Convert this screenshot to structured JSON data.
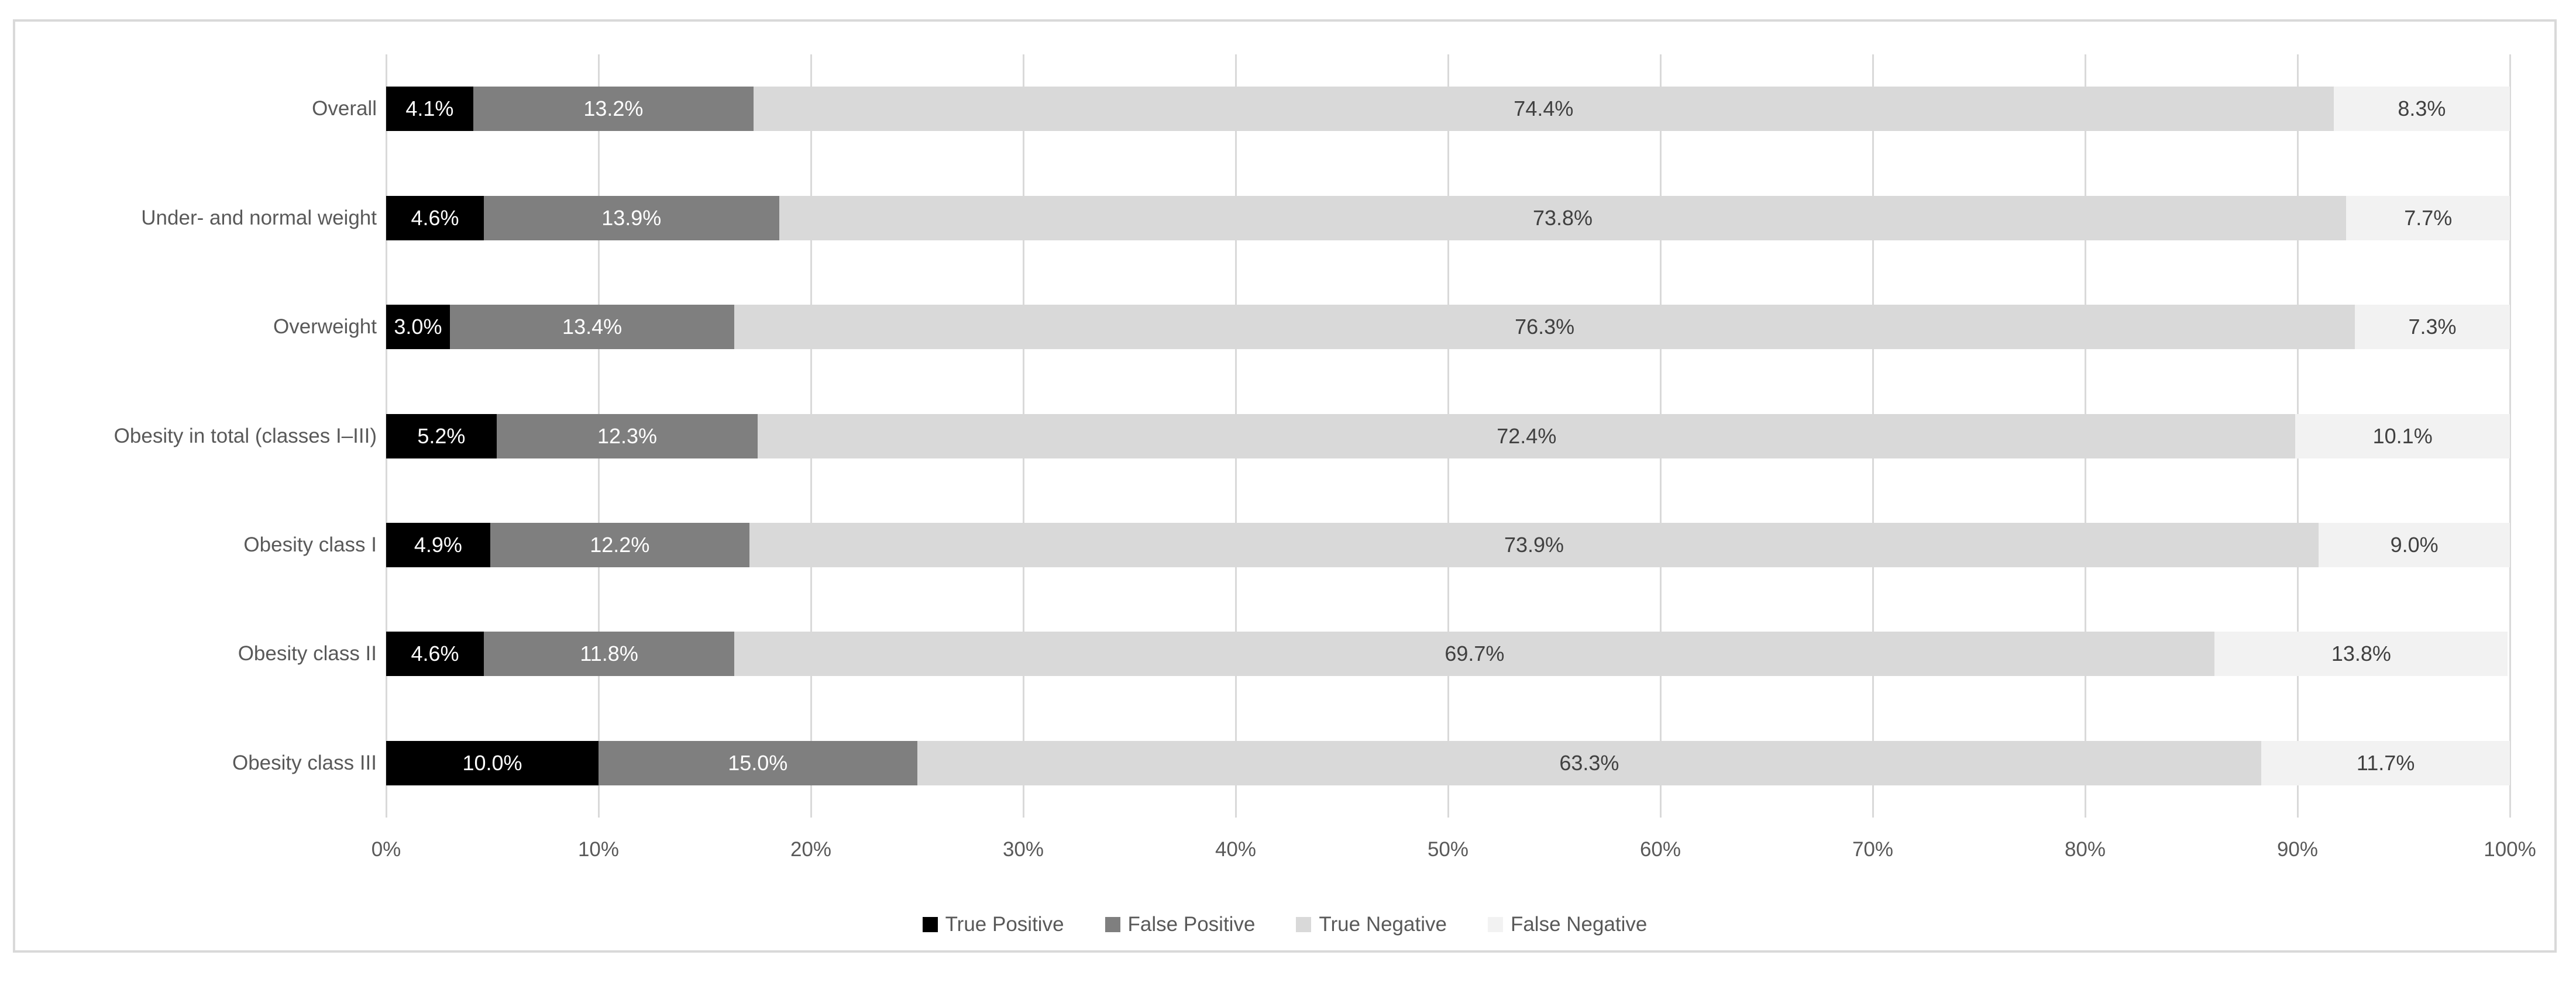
{
  "figure": {
    "background": "#ffffff",
    "border_color": "#d9d9d9",
    "gridline_color": "#d9d9d9",
    "axis_text_color": "#595959",
    "dark_label_color": "#404040",
    "light_label_color": "#ffffff"
  },
  "chart_data": {
    "type": "bar",
    "orientation": "horizontal_stacked",
    "title": "",
    "xlabel": "",
    "ylabel": "",
    "grid": "vertical",
    "categories": [
      "Overall",
      "Under- and normal weight",
      "Overweight",
      "Obesity in total (classes I–III)",
      "Obesity class I",
      "Obesity class II",
      "Obesity class III"
    ],
    "series": [
      {
        "name": "True Positive",
        "color": "#000000",
        "label_color": "#ffffff",
        "values": [
          4.1,
          4.6,
          3.0,
          5.2,
          4.9,
          4.6,
          10.0
        ],
        "labels": [
          "4.1%",
          "4.6%",
          "3.0%",
          "5.2%",
          "4.9%",
          "4.6%",
          "10.0%"
        ]
      },
      {
        "name": "False Positive",
        "color": "#7f7f7f",
        "label_color": "#ffffff",
        "values": [
          13.2,
          13.9,
          13.4,
          12.3,
          12.2,
          11.8,
          15.0
        ],
        "labels": [
          "13.2%",
          "13.9%",
          "13.4%",
          "12.3%",
          "12.2%",
          "11.8%",
          "15.0%"
        ]
      },
      {
        "name": "True Negative",
        "color": "#d9d9d9",
        "label_color": "#404040",
        "values": [
          74.4,
          73.8,
          76.3,
          72.4,
          73.9,
          69.7,
          63.3
        ],
        "labels": [
          "74.4%",
          "73.8%",
          "76.3%",
          "72.4%",
          "73.9%",
          "69.7%",
          "63.3%"
        ]
      },
      {
        "name": "False Negative",
        "color": "#f2f2f2",
        "label_color": "#404040",
        "values": [
          8.3,
          7.7,
          7.3,
          10.1,
          9.0,
          13.8,
          11.7
        ],
        "labels": [
          "8.3%",
          "7.7%",
          "7.3%",
          "10.1%",
          "9.0%",
          "13.8%",
          "11.7%"
        ]
      }
    ],
    "x_axis": {
      "min": 0,
      "max": 100,
      "ticks": [
        "0%",
        "10%",
        "20%",
        "30%",
        "40%",
        "50%",
        "60%",
        "70%",
        "80%",
        "90%",
        "100%"
      ]
    },
    "legend": {
      "position": "bottom",
      "entries": [
        "True Positive",
        "False Positive",
        "True Negative",
        "False Negative"
      ]
    }
  }
}
